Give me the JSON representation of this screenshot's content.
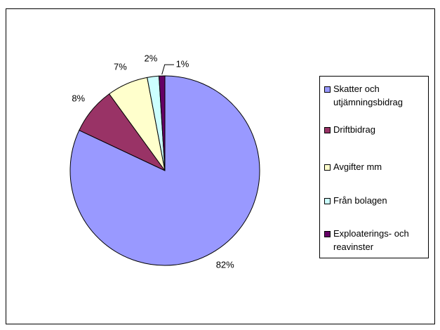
{
  "chart_data": {
    "type": "pie",
    "categories": [
      "Skatter och utjämningsbidrag",
      "Driftbidrag",
      "Avgifter mm",
      "Från bolagen",
      "Exploaterings- och reavinster"
    ],
    "values": [
      82,
      8,
      7,
      2,
      1
    ],
    "value_labels": [
      "82%",
      "8%",
      "7%",
      "2%",
      "1%"
    ],
    "colors": [
      "#9999ff",
      "#993366",
      "#ffffcc",
      "#ccffff",
      "#660066"
    ],
    "legend": "right"
  }
}
